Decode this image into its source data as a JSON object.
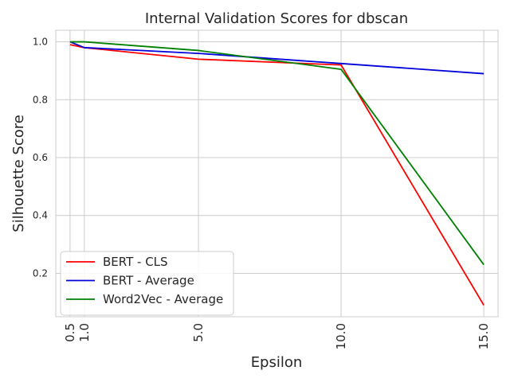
{
  "chart_data": {
    "type": "line",
    "title": "Internal Validation Scores for dbscan",
    "xlabel": "Epsilon",
    "ylabel": "Silhouette Score",
    "x": [
      0.5,
      1.0,
      5.0,
      10.0,
      15.0
    ],
    "x_tick_labels": [
      "0.5",
      "1.0",
      "5.0",
      "10.0",
      "15.0"
    ],
    "y_ticks": [
      0.2,
      0.4,
      0.6,
      0.8,
      1.0
    ],
    "y_tick_labels": [
      "0.2",
      "0.4",
      "0.6",
      "0.8",
      "1.0"
    ],
    "xlim": [
      0.0,
      15.5
    ],
    "ylim": [
      0.05,
      1.04
    ],
    "grid": true,
    "legend_position": "lower-left",
    "series": [
      {
        "name": "BERT - CLS",
        "color": "#ff0000",
        "values": [
          0.99,
          0.98,
          0.94,
          0.92,
          0.09
        ]
      },
      {
        "name": "BERT - Average",
        "color": "#0000dd",
        "values": [
          1.0,
          0.98,
          0.96,
          0.925,
          0.89
        ]
      },
      {
        "name": "Word2Vec - Average",
        "color": "#008000",
        "values": [
          1.0,
          1.0,
          0.97,
          0.905,
          0.23
        ]
      }
    ]
  }
}
